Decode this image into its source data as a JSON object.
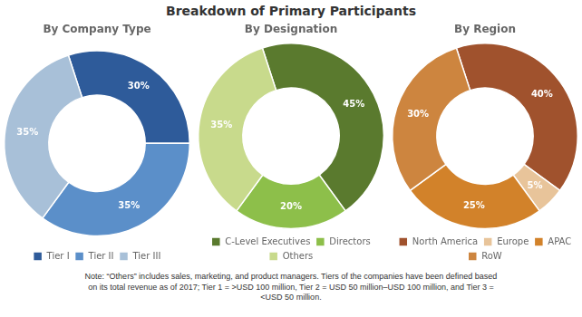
{
  "title": "Breakdown of Primary Participants",
  "annotations": [
    "Note: “Others” includes sales, marketing, and product managers. Tiers of the companies have been defined based\non its total revenue as of 2017; Tier 1 = >USD 100 million, Tier 2 = USD 50 million–USD 100 million, and Tier 3 =\n<USD 50 million."
  ],
  "chart_data": [
    {
      "type": "donut",
      "title": "By Company Type",
      "categories": [
        "Tier I",
        "Tier II",
        "Tier III"
      ],
      "values": [
        30,
        35,
        35
      ],
      "value_labels": [
        "30%",
        "35%",
        "35%"
      ],
      "colors": [
        "#2E5B9A",
        "#5B8FC9",
        "#A8C0D8"
      ],
      "data_labels": true,
      "legend": "bottom"
    },
    {
      "type": "donut",
      "title": "By Designation",
      "categories": [
        "C-Level Executives",
        "Directors",
        "Others"
      ],
      "values": [
        45,
        20,
        35
      ],
      "value_labels": [
        "45%",
        "20%",
        "35%"
      ],
      "colors": [
        "#5A7A2E",
        "#8DBF4A",
        "#C8DA8C"
      ],
      "data_labels": true,
      "legend": "bottom"
    },
    {
      "type": "donut",
      "title": "By Region",
      "categories": [
        "North America",
        "Europe",
        "APAC",
        "RoW"
      ],
      "values": [
        40,
        5,
        25,
        30
      ],
      "value_labels": [
        "40%",
        "5%",
        "25%",
        "30%"
      ],
      "colors": [
        "#A0522D",
        "#E8C49A",
        "#D2822A",
        "#CD853F"
      ],
      "data_labels": true,
      "legend": "bottom"
    }
  ]
}
